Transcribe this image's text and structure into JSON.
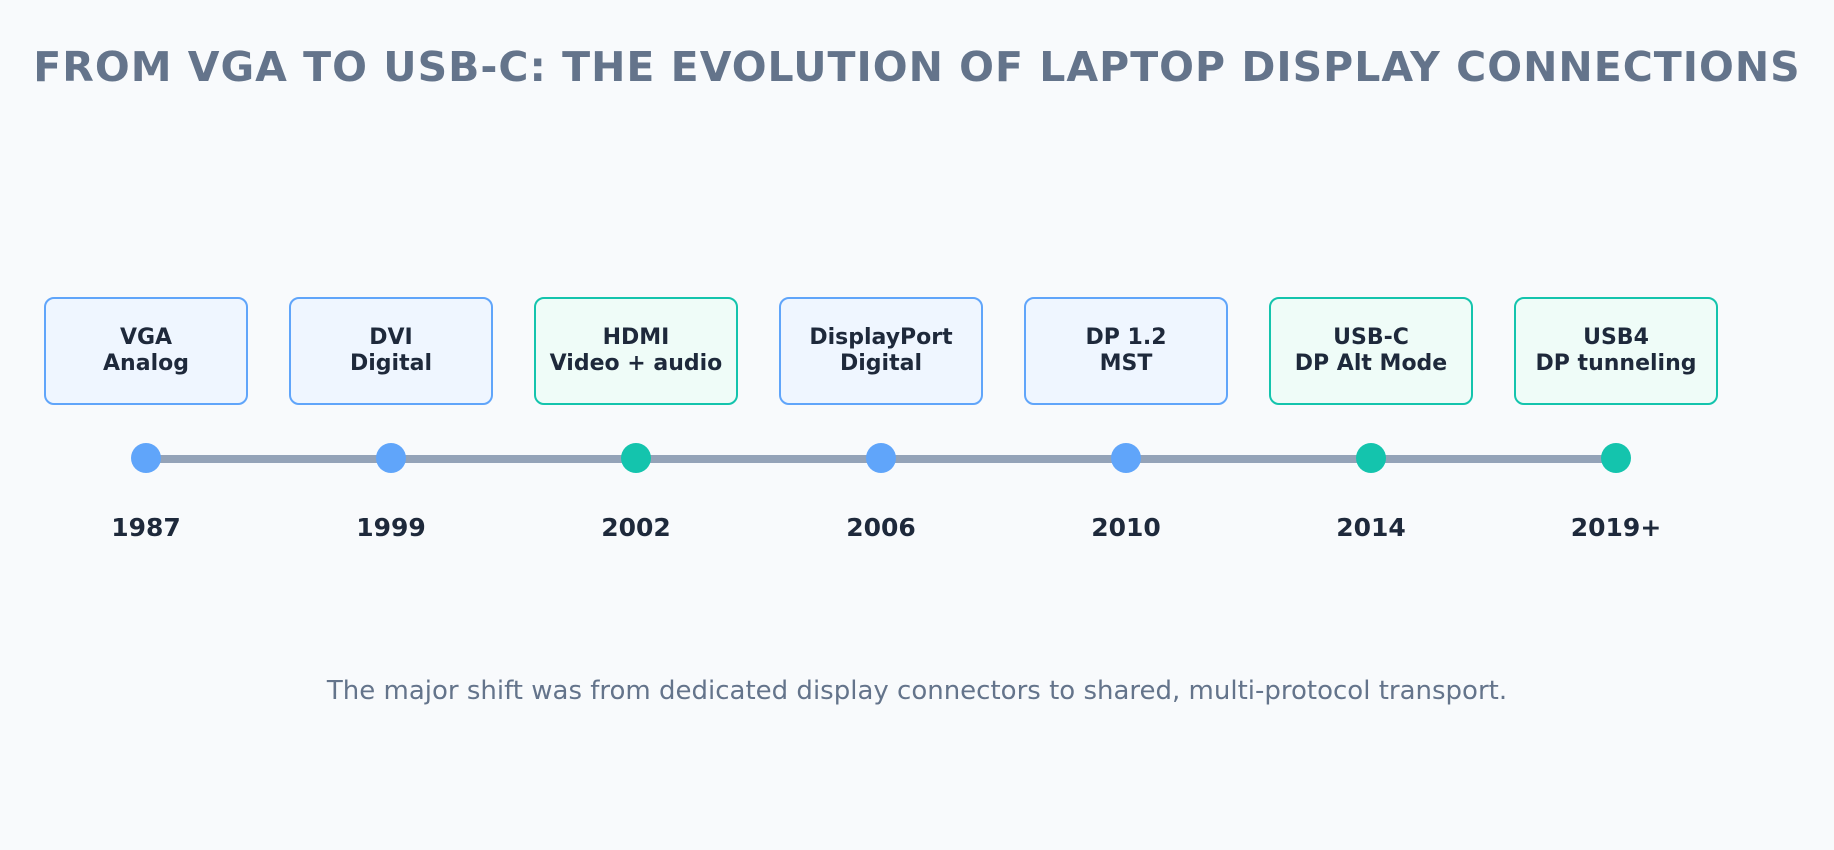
{
  "title": "FROM VGA TO USB-C: THE EVOLUTION OF LAPTOP DISPLAY CONNECTIONS",
  "colors": {
    "background": "#f8fafc",
    "title": "#64748b",
    "track": "#94a3b8",
    "blue_accent": "#60a5fa",
    "blue_fill": "#eff6ff",
    "teal_accent": "#14c4ad",
    "teal_fill": "#effcf8",
    "text_dark": "#1e293b"
  },
  "milestones": [
    {
      "year": "1987",
      "name": "VGA",
      "detail": "Analog",
      "style": "blue"
    },
    {
      "year": "1999",
      "name": "DVI",
      "detail": "Digital",
      "style": "blue"
    },
    {
      "year": "2002",
      "name": "HDMI",
      "detail": "Video + audio",
      "style": "teal"
    },
    {
      "year": "2006",
      "name": "DisplayPort",
      "detail": "Digital",
      "style": "blue"
    },
    {
      "year": "2010",
      "name": "DP 1.2",
      "detail": "MST",
      "style": "blue"
    },
    {
      "year": "2014",
      "name": "USB-C",
      "detail": "DP Alt Mode",
      "style": "teal"
    },
    {
      "year": "2019+",
      "name": "USB4",
      "detail": "DP tunneling",
      "style": "teal"
    }
  ],
  "caption": "The major shift was from dedicated display connectors to shared, multi-protocol transport."
}
